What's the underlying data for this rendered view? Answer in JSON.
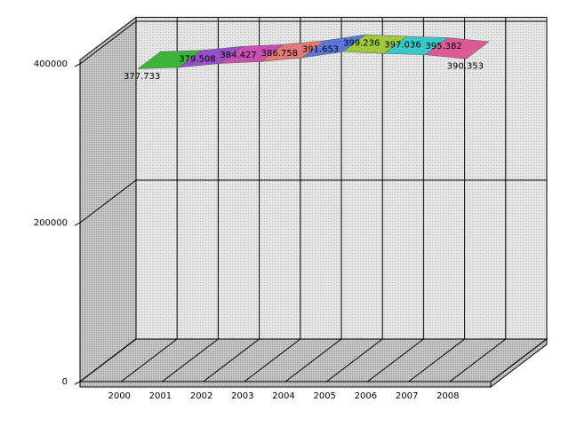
{
  "chart_data": {
    "type": "line3d",
    "categories": [
      "2000",
      "2001",
      "2002",
      "2003",
      "2004",
      "2005",
      "2006",
      "2007",
      "2008"
    ],
    "series": [
      {
        "values": [
          377733,
          379508,
          384427,
          386758,
          391653,
          399236,
          397036,
          395382,
          390353
        ],
        "value_labels": [
          "377.733",
          "379.508",
          "384.427",
          "386.758",
          "391.653",
          "399.236",
          "397.036",
          "395.382",
          "390.353"
        ]
      }
    ],
    "colors": [
      "#3cb43c",
      "#9650c8",
      "#c850b4",
      "#e67878",
      "#5a78dc",
      "#a0c83c",
      "#3cc8c8",
      "#dc5a96"
    ],
    "ylim": [
      0,
      405000
    ],
    "yticks": [
      0,
      200000,
      400000
    ],
    "grid": true
  }
}
